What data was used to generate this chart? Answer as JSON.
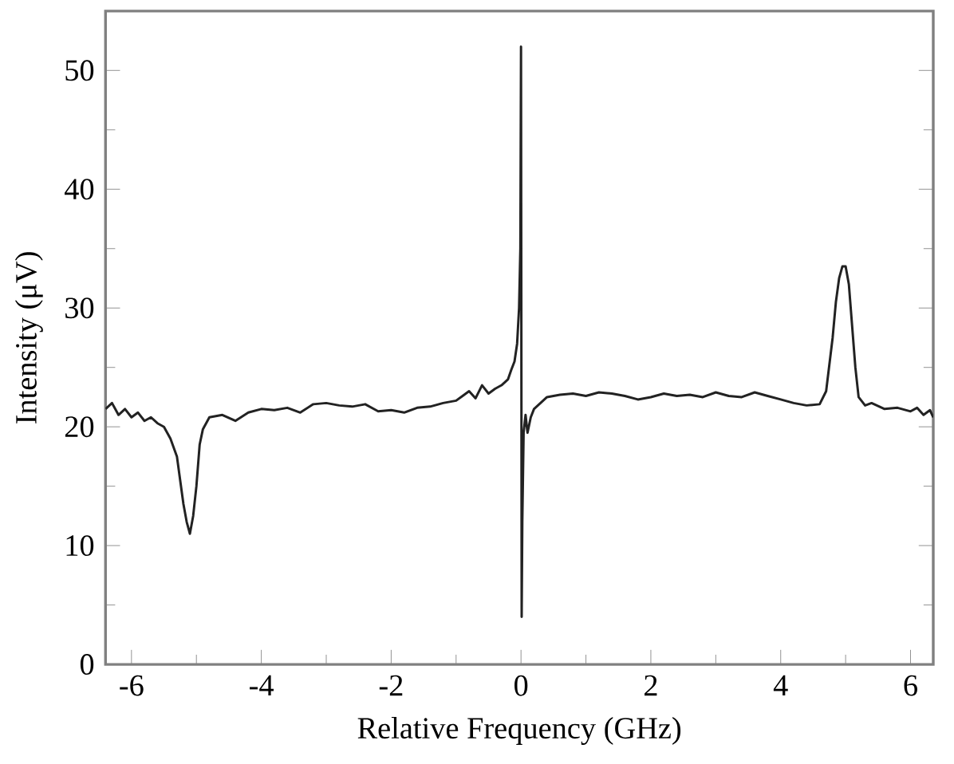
{
  "chart_data": {
    "type": "line",
    "xlabel": "Relative Frequency (GHz)",
    "ylabel": "Intensity (μV)",
    "xlim": [
      -6.4,
      6.35
    ],
    "ylim": [
      0,
      55
    ],
    "xticks": [
      -6,
      -4,
      -2,
      0,
      2,
      4,
      6
    ],
    "yticks": [
      0,
      10,
      20,
      30,
      40,
      50
    ],
    "marker": "none",
    "line_style": "solid",
    "series": [
      {
        "color": "#222222",
        "x": [
          -6.4,
          -6.3,
          -6.2,
          -6.1,
          -6.0,
          -5.9,
          -5.8,
          -5.7,
          -5.6,
          -5.5,
          -5.4,
          -5.3,
          -5.25,
          -5.2,
          -5.15,
          -5.1,
          -5.05,
          -5.0,
          -4.95,
          -4.9,
          -4.8,
          -4.6,
          -4.4,
          -4.2,
          -4.0,
          -3.8,
          -3.6,
          -3.4,
          -3.2,
          -3.0,
          -2.8,
          -2.6,
          -2.4,
          -2.2,
          -2.0,
          -1.8,
          -1.6,
          -1.4,
          -1.2,
          -1.0,
          -0.9,
          -0.8,
          -0.7,
          -0.6,
          -0.5,
          -0.4,
          -0.3,
          -0.2,
          -0.15,
          -0.1,
          -0.06,
          -0.03,
          -0.01,
          0.0,
          0.005,
          0.01,
          0.02,
          0.04,
          0.07,
          0.1,
          0.15,
          0.2,
          0.3,
          0.4,
          0.6,
          0.8,
          1.0,
          1.2,
          1.4,
          1.6,
          1.8,
          2.0,
          2.2,
          2.4,
          2.6,
          2.8,
          3.0,
          3.2,
          3.4,
          3.6,
          3.8,
          4.0,
          4.2,
          4.4,
          4.6,
          4.7,
          4.8,
          4.85,
          4.9,
          4.95,
          5.0,
          5.05,
          5.1,
          5.15,
          5.2,
          5.3,
          5.4,
          5.6,
          5.8,
          6.0,
          6.1,
          6.2,
          6.3,
          6.35
        ],
        "values": [
          21.5,
          22.0,
          21.0,
          21.5,
          20.8,
          21.2,
          20.5,
          20.8,
          20.3,
          20.0,
          19.0,
          17.5,
          15.5,
          13.5,
          12.0,
          11.0,
          12.5,
          15.0,
          18.5,
          19.8,
          20.8,
          21.0,
          20.5,
          21.2,
          21.5,
          21.4,
          21.6,
          21.2,
          21.9,
          22.0,
          21.8,
          21.7,
          21.9,
          21.3,
          21.4,
          21.2,
          21.6,
          21.7,
          22.0,
          22.2,
          22.6,
          23.0,
          22.4,
          23.5,
          22.8,
          23.2,
          23.5,
          24.0,
          24.8,
          25.5,
          27.0,
          30.0,
          35.0,
          52.0,
          30.0,
          4.0,
          12.0,
          19.5,
          21.0,
          19.5,
          20.8,
          21.5,
          22.0,
          22.5,
          22.7,
          22.8,
          22.6,
          22.9,
          22.8,
          22.6,
          22.3,
          22.5,
          22.8,
          22.6,
          22.7,
          22.5,
          22.9,
          22.6,
          22.5,
          22.9,
          22.6,
          22.3,
          22.0,
          21.8,
          21.9,
          23.0,
          27.5,
          30.5,
          32.5,
          33.5,
          33.5,
          32.0,
          28.5,
          25.0,
          22.5,
          21.8,
          22.0,
          21.5,
          21.6,
          21.3,
          21.6,
          21.0,
          21.4,
          20.8
        ]
      }
    ]
  }
}
